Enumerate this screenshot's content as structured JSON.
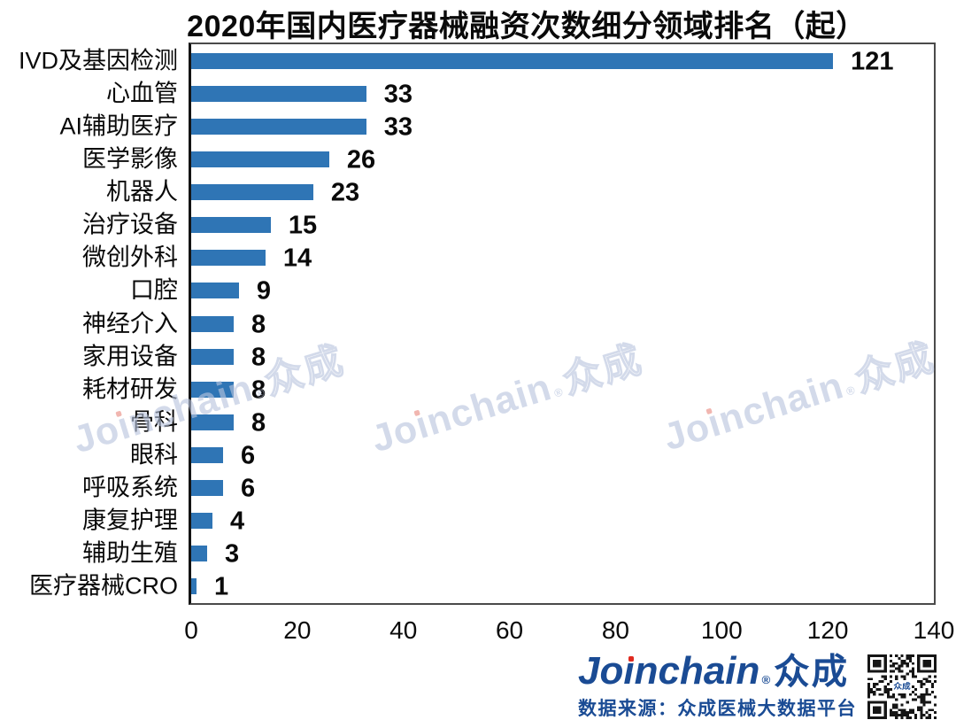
{
  "chart_data": {
    "type": "bar",
    "orientation": "horizontal",
    "title": "2020年国内医疗器械融资次数细分领域排名（起）",
    "categories": [
      "IVD及基因检测",
      "心血管",
      "AI辅助医疗",
      "医学影像",
      "机器人",
      "治疗设备",
      "微创外科",
      "口腔",
      "神经介入",
      "家用设备",
      "耗材研发",
      "骨科",
      "眼科",
      "呼吸系统",
      "康复护理",
      "辅助生殖",
      "医疗器械CRO"
    ],
    "values": [
      121,
      33,
      33,
      26,
      23,
      15,
      14,
      9,
      8,
      8,
      8,
      8,
      6,
      6,
      4,
      3,
      1
    ],
    "xlabel": "",
    "ylabel": "",
    "xlim": [
      0,
      140
    ],
    "x_ticks": [
      "0",
      "20",
      "40",
      "60",
      "80",
      "100",
      "120",
      "140"
    ],
    "grid": false,
    "legend": false,
    "value_labels": true,
    "bar_color": "#2F75B5"
  },
  "watermark": {
    "text": "Joinchain®众成",
    "pre": "Jo",
    "i_dotless": "ı",
    "post": "nchain",
    "reg": "®",
    "cn": "众成",
    "count": 3,
    "color": "#B9C5DE",
    "dot_color": "#E98B80"
  },
  "footer": {
    "brand_text": "Joinchain®众成",
    "brand": {
      "pre": "Jo",
      "i_dotless": "ı",
      "post": "nchain",
      "reg": "®",
      "cn": "众成"
    },
    "source": "数据来源：众成医械大数据平台",
    "brand_color": "#1A4B94",
    "dot_color": "#E02A1F"
  },
  "qr": {
    "center_text": "众成"
  }
}
